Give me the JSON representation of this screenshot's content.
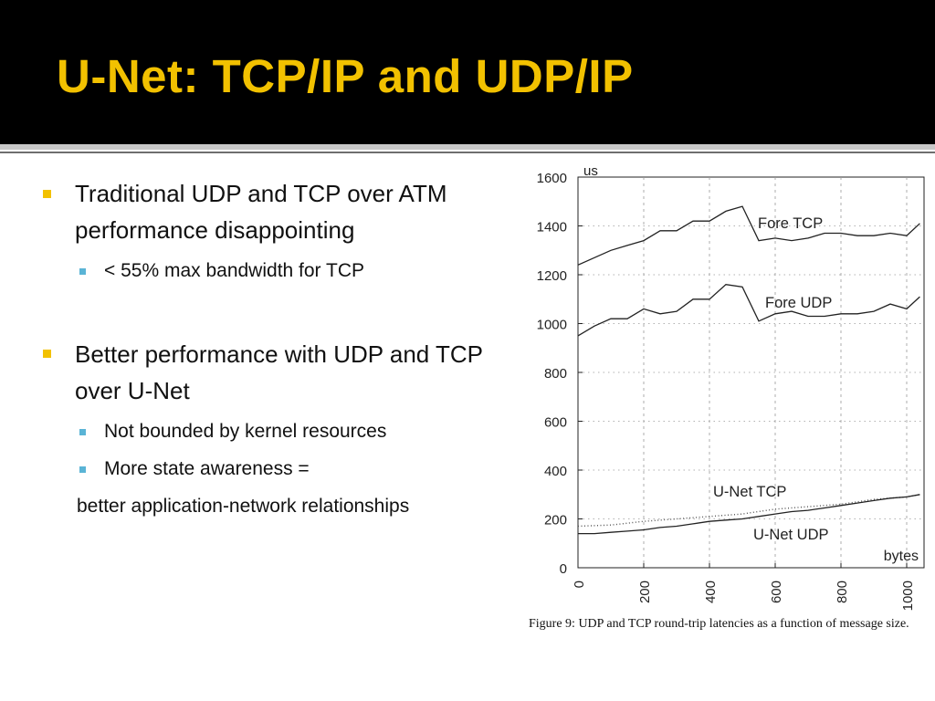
{
  "slide": {
    "title": "U-Net: TCP/IP and UDP/IP",
    "bullets": [
      {
        "text": "Traditional UDP and TCP over ATM performance disappointing",
        "sub": [
          "< 55% max bandwidth for TCP"
        ]
      },
      {
        "text": "Better performance with UDP and TCP over U-Net",
        "sub": [
          "Not bounded by kernel resources",
          "More state awareness ="
        ],
        "continuation": "better application-network relationships"
      }
    ]
  },
  "colors": {
    "title_bar": "#000000",
    "title_text": "#f2c100",
    "bullet_marker": "#f2c100",
    "sub_bullet_marker": "#5ab4d6",
    "plot_ink": "#222222"
  },
  "chart_data": {
    "type": "line",
    "xlabel": "bytes",
    "ylabel": "us",
    "xlim": [
      0,
      1000
    ],
    "ylim": [
      0,
      1600
    ],
    "xticks": [
      0,
      200,
      400,
      600,
      800,
      1000
    ],
    "yticks": [
      0,
      200,
      400,
      600,
      800,
      1000,
      1200,
      1400,
      1600
    ],
    "grid": true,
    "caption": "Figure 9:  UDP and TCP round-trip latencies as a function of message size.",
    "series": [
      {
        "name": "Fore TCP",
        "style": "solid",
        "x": [
          0,
          50,
          100,
          150,
          200,
          250,
          300,
          350,
          400,
          450,
          500,
          550,
          600,
          650,
          700,
          750,
          800,
          850,
          900,
          950,
          1000,
          1040
        ],
        "values": [
          1240,
          1270,
          1300,
          1320,
          1340,
          1380,
          1380,
          1420,
          1420,
          1460,
          1480,
          1340,
          1350,
          1340,
          1350,
          1370,
          1370,
          1360,
          1360,
          1370,
          1360,
          1410
        ]
      },
      {
        "name": "Fore UDP",
        "style": "solid",
        "x": [
          0,
          50,
          100,
          150,
          200,
          250,
          300,
          350,
          400,
          450,
          500,
          550,
          600,
          650,
          700,
          750,
          800,
          850,
          900,
          950,
          1000,
          1040
        ],
        "values": [
          950,
          990,
          1020,
          1020,
          1060,
          1040,
          1050,
          1100,
          1100,
          1160,
          1150,
          1010,
          1040,
          1050,
          1030,
          1030,
          1040,
          1040,
          1050,
          1080,
          1060,
          1110
        ]
      },
      {
        "name": "U-Net TCP",
        "style": "dotted",
        "x": [
          0,
          100,
          200,
          300,
          400,
          500,
          600,
          700,
          800,
          900,
          1000,
          1040
        ],
        "values": [
          170,
          175,
          190,
          200,
          210,
          220,
          240,
          250,
          260,
          280,
          290,
          300
        ]
      },
      {
        "name": "U-Net UDP",
        "style": "solid",
        "x": [
          0,
          50,
          100,
          150,
          200,
          250,
          300,
          350,
          400,
          450,
          500,
          550,
          600,
          650,
          700,
          750,
          800,
          850,
          900,
          950,
          1000,
          1040
        ],
        "values": [
          140,
          140,
          145,
          150,
          155,
          165,
          170,
          180,
          190,
          195,
          200,
          210,
          220,
          230,
          235,
          245,
          255,
          265,
          275,
          285,
          290,
          300
        ]
      }
    ]
  }
}
